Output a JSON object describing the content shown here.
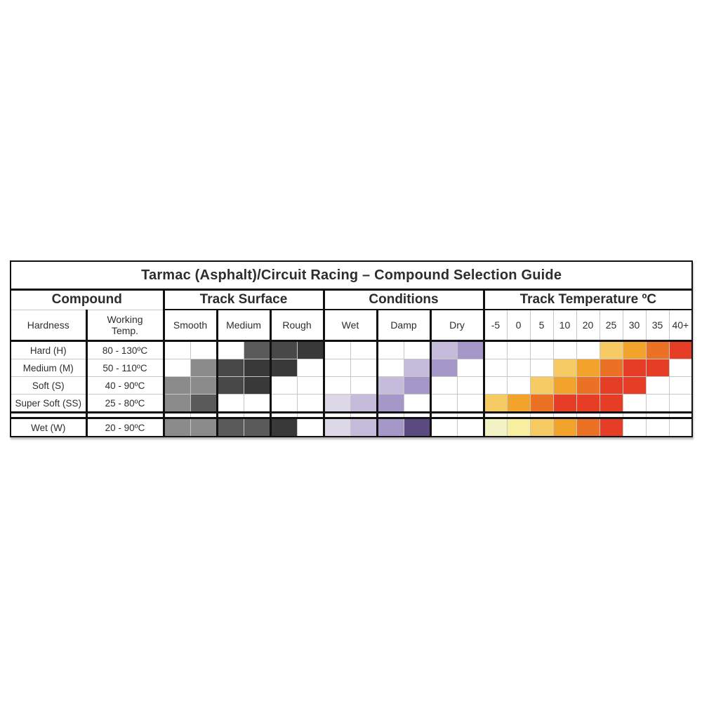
{
  "title": "Tarmac (Asphalt)/Circuit Racing – Compound Selection Guide",
  "groups": {
    "compound": "Compound",
    "track_surface": "Track Surface",
    "conditions": "Conditions",
    "track_temperature": "Track Temperature ºC"
  },
  "subheaders": {
    "hardness": "Hardness",
    "working_temp": "Working Temp.",
    "surface": [
      "Smooth",
      "Medium",
      "Rough"
    ],
    "conditions": [
      "Wet",
      "Damp",
      "Dry"
    ],
    "temperatures": [
      "-5",
      "0",
      "5",
      "10",
      "20",
      "25",
      "30",
      "35",
      "40+"
    ]
  },
  "palette": {
    "w": "#ffffff",
    "g1": "#8b8b8b",
    "g2": "#5a5a5a",
    "g3": "#484848",
    "g4": "#393939",
    "p1": "#dcd8e8",
    "p2": "#c5bcdb",
    "p3": "#a597c7",
    "p4": "#5a4a80",
    "y1": "#f3f2c5",
    "y2": "#f8ee9f",
    "y3": "#f7cb64",
    "y4": "#f1a32b",
    "y5": "#eb7225",
    "y6": "#e63d26"
  },
  "chart_data": {
    "type": "heatmap",
    "title": "Tarmac (Asphalt)/Circuit Racing – Compound Selection Guide",
    "surface_subcells_per_column": 2,
    "condition_subcells_per_column": 2,
    "temperature_columns": [
      "-5",
      "0",
      "5",
      "10",
      "20",
      "25",
      "30",
      "35",
      "40+"
    ],
    "legend_note": "cell keys reference palette: w=none, g=gray suitability, p=purple suitability, y=heat suitability",
    "rows": [
      {
        "hardness": "Hard (H)",
        "working_temp": "80 - 130ºC",
        "surface": [
          "w",
          "w",
          "w",
          "g2",
          "g3",
          "g4"
        ],
        "conditions": [
          "w",
          "w",
          "w",
          "w",
          "p2",
          "p3"
        ],
        "temperatures": [
          "w",
          "w",
          "w",
          "w",
          "w",
          "y3",
          "y4",
          "y5",
          "y6"
        ],
        "separator_before": false
      },
      {
        "hardness": "Medium (M)",
        "working_temp": "50 - 110ºC",
        "surface": [
          "w",
          "g1",
          "g3",
          "g4",
          "g4",
          "w"
        ],
        "conditions": [
          "w",
          "w",
          "w",
          "p2",
          "p3",
          "w"
        ],
        "temperatures": [
          "w",
          "w",
          "w",
          "y3",
          "y4",
          "y5",
          "y6",
          "y6",
          "w"
        ],
        "separator_before": false
      },
      {
        "hardness": "Soft (S)",
        "working_temp": "40 - 90ºC",
        "surface": [
          "g1",
          "g1",
          "g3",
          "g4",
          "w",
          "w"
        ],
        "conditions": [
          "w",
          "w",
          "p2",
          "p3",
          "w",
          "w"
        ],
        "temperatures": [
          "w",
          "w",
          "y3",
          "y4",
          "y5",
          "y6",
          "y6",
          "w",
          "w"
        ],
        "separator_before": false
      },
      {
        "hardness": "Super Soft (SS)",
        "working_temp": "25 - 80ºC",
        "surface": [
          "g1",
          "g2",
          "w",
          "w",
          "w",
          "w"
        ],
        "conditions": [
          "p1",
          "p2",
          "p3",
          "w",
          "w",
          "w"
        ],
        "temperatures": [
          "y3",
          "y4",
          "y5",
          "y6",
          "y6",
          "y6",
          "w",
          "w",
          "w"
        ],
        "separator_before": false
      },
      {
        "hardness": "Wet (W)",
        "working_temp": "20 - 90ºC",
        "surface": [
          "g1",
          "g1",
          "g2",
          "g2",
          "g4",
          "w"
        ],
        "conditions": [
          "p1",
          "p2",
          "p3",
          "p4",
          "w",
          "w"
        ],
        "temperatures": [
          "y1",
          "y2",
          "y3",
          "y4",
          "y5",
          "y6",
          "w",
          "w",
          "w"
        ],
        "separator_before": true
      }
    ]
  }
}
